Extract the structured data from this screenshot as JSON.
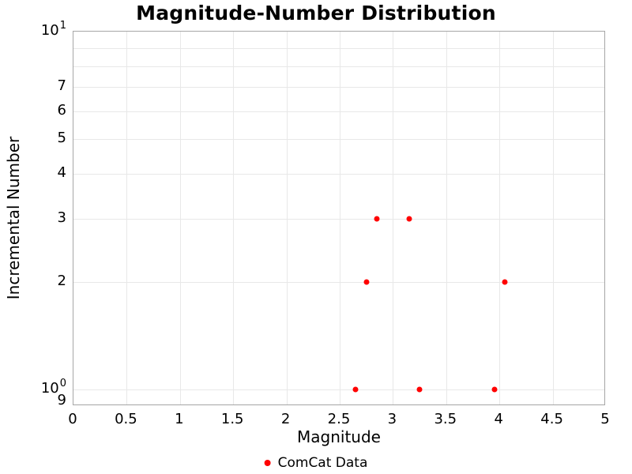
{
  "chart_data": {
    "type": "scatter",
    "title": "Magnitude-Number Distribution",
    "xlabel": "Magnitude",
    "ylabel": "Incremental Number",
    "grid": true,
    "legend_position": "bottom-center",
    "x_axis": {
      "min": 0,
      "max": 5,
      "scale": "linear",
      "ticks": [
        {
          "v": 0,
          "label": "0"
        },
        {
          "v": 0.5,
          "label": "0.5"
        },
        {
          "v": 1,
          "label": "1"
        },
        {
          "v": 1.5,
          "label": "1.5"
        },
        {
          "v": 2,
          "label": "2"
        },
        {
          "v": 2.5,
          "label": "2.5"
        },
        {
          "v": 3,
          "label": "3"
        },
        {
          "v": 3.5,
          "label": "3.5"
        },
        {
          "v": 4,
          "label": "4"
        },
        {
          "v": 4.5,
          "label": "4.5"
        },
        {
          "v": 5,
          "label": "5"
        }
      ],
      "gridlines": [
        0.5,
        1,
        1.5,
        2,
        2.5,
        3,
        3.5,
        4,
        4.5
      ]
    },
    "y_axis": {
      "min": 0.9,
      "max": 10,
      "scale": "log",
      "ticks": [
        {
          "v": 10,
          "label": "10",
          "sup": "1"
        },
        {
          "v": 7,
          "label": "7"
        },
        {
          "v": 6,
          "label": "6"
        },
        {
          "v": 5,
          "label": "5"
        },
        {
          "v": 4,
          "label": "4"
        },
        {
          "v": 3,
          "label": "3"
        },
        {
          "v": 2,
          "label": "2"
        },
        {
          "v": 1,
          "label": "10",
          "sup": "0"
        },
        {
          "v": 0.9,
          "label": "9"
        }
      ],
      "gridlines": [
        1,
        2,
        3,
        4,
        5,
        6,
        7,
        8,
        9
      ]
    },
    "series": [
      {
        "name": "ComCat Data",
        "color": "#ff0000",
        "marker": "circle",
        "points": [
          [
            2.65,
            1
          ],
          [
            2.75,
            2
          ],
          [
            2.85,
            3
          ],
          [
            3.15,
            3
          ],
          [
            3.25,
            1
          ],
          [
            3.95,
            1
          ],
          [
            4.05,
            2
          ]
        ]
      }
    ]
  },
  "colors": {
    "accent": "#ff0000",
    "grid": "#e8e8e8",
    "axis_border": "#a6a6a6",
    "text": "#000000",
    "background": "#ffffff"
  }
}
